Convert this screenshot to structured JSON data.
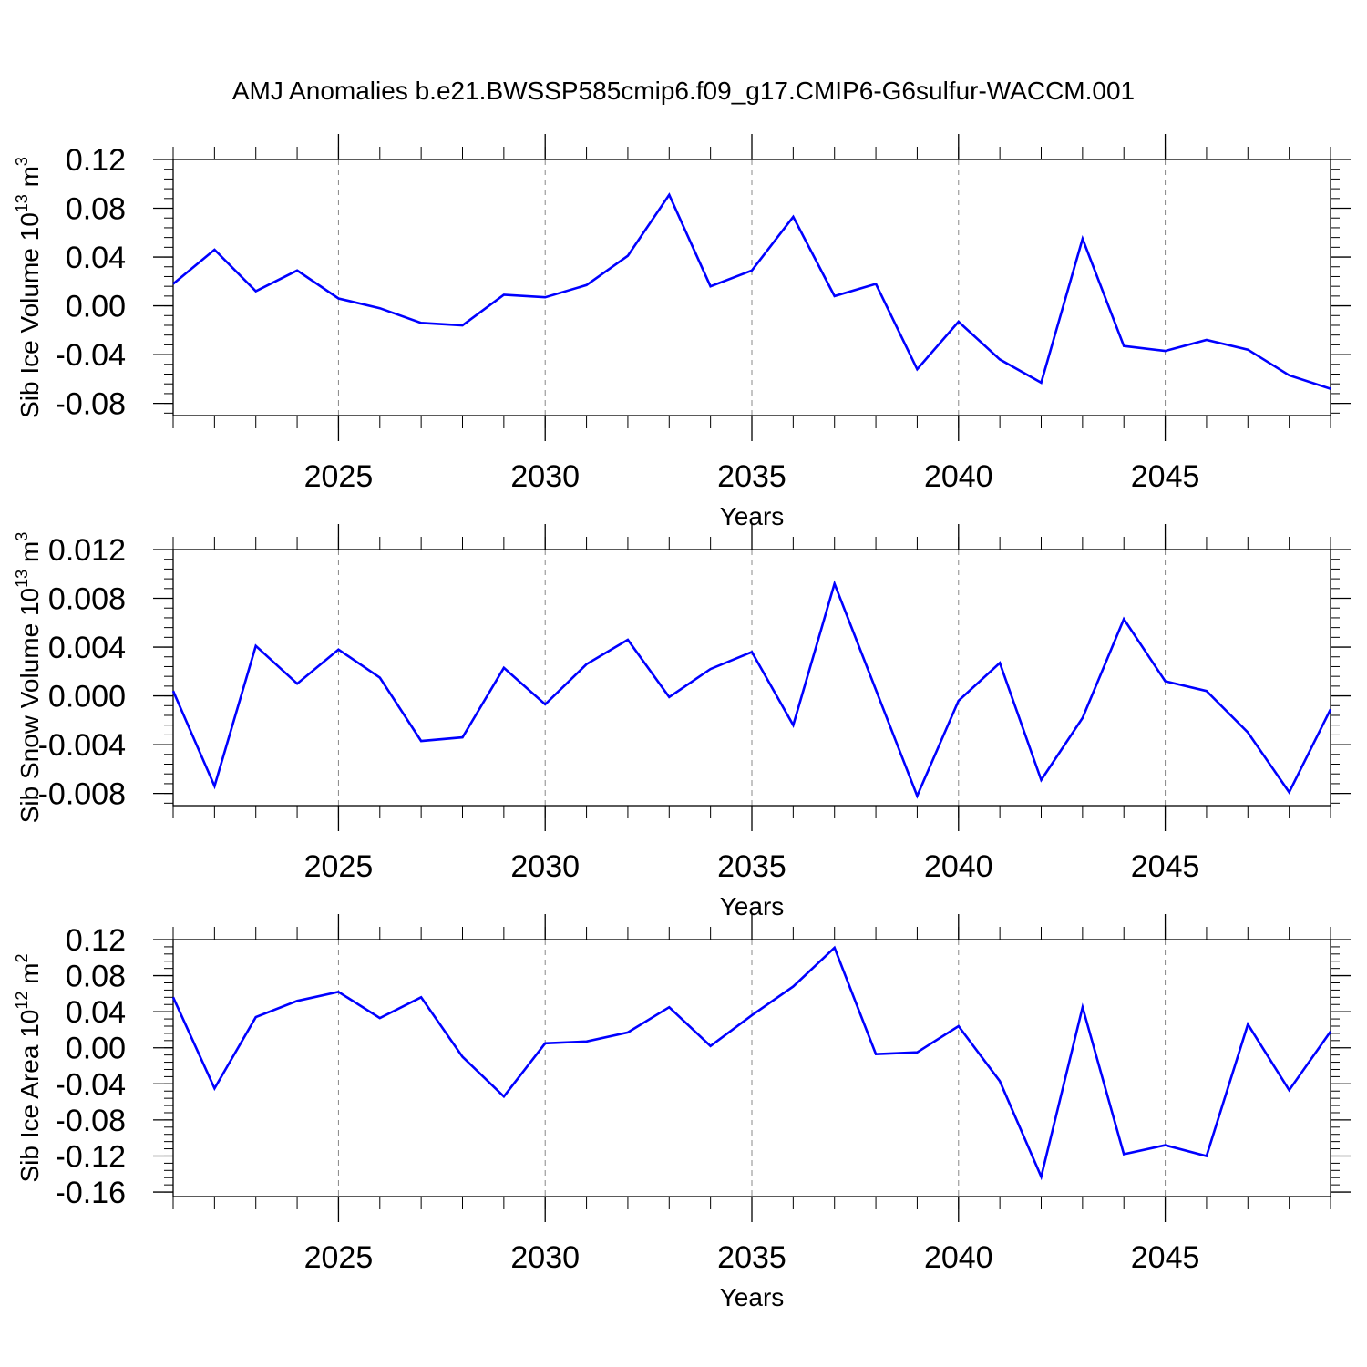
{
  "figure": {
    "title": "AMJ Anomalies b.e21.BWSSP585cmip6.f09_g17.CMIP6-G6sulfur-WACCM.001"
  },
  "style": {
    "line_color": "#0000ff",
    "grid_color": "#888888",
    "axis_color": "#000000"
  },
  "chart_data": [
    {
      "type": "line",
      "title": "",
      "xlabel": "Years",
      "ylabel": {
        "text": "Sib Ice Volume 10",
        "sup": "13",
        "unit": " m",
        "unit_sup": "3"
      },
      "xlim": [
        2021,
        2049
      ],
      "ylim": [
        -0.09,
        0.12
      ],
      "y_ticks": [
        -0.08,
        -0.04,
        0.0,
        0.04,
        0.08,
        0.12
      ],
      "y_tick_labels": [
        "-0.08",
        "-0.04",
        "0.00",
        "0.04",
        "0.08",
        "0.12"
      ],
      "x_ticks": [
        2025,
        2030,
        2035,
        2040,
        2045
      ],
      "x_tick_labels": [
        "2025",
        "2030",
        "2035",
        "2040",
        "2045"
      ],
      "grid": "vertical dashed at major x ticks",
      "series": [
        {
          "x": [
            2021,
            2022,
            2023,
            2024,
            2025,
            2026,
            2027,
            2028,
            2029,
            2030,
            2031,
            2032,
            2033,
            2034,
            2035,
            2036,
            2037,
            2038,
            2039,
            2040,
            2041,
            2042,
            2043,
            2044,
            2045,
            2046,
            2047,
            2048,
            2049
          ],
          "values": [
            0.018,
            0.046,
            0.012,
            0.029,
            0.006,
            -0.002,
            -0.014,
            -0.016,
            0.009,
            0.007,
            0.017,
            0.041,
            0.091,
            0.016,
            0.029,
            0.073,
            0.008,
            0.018,
            -0.052,
            -0.013,
            -0.044,
            -0.063,
            0.055,
            -0.033,
            -0.037,
            -0.028,
            -0.036,
            -0.057,
            -0.068
          ]
        }
      ]
    },
    {
      "type": "line",
      "title": "",
      "xlabel": "Years",
      "ylabel": {
        "text": "Sib Snow Volume 10",
        "sup": "13",
        "unit": " m",
        "unit_sup": "3"
      },
      "xlim": [
        2021,
        2049
      ],
      "ylim": [
        -0.009,
        0.012
      ],
      "y_ticks": [
        -0.008,
        -0.004,
        0.0,
        0.004,
        0.008,
        0.012
      ],
      "y_tick_labels": [
        "-0.008",
        "-0.004",
        "0.000",
        "0.004",
        "0.008",
        "0.012"
      ],
      "x_ticks": [
        2025,
        2030,
        2035,
        2040,
        2045
      ],
      "x_tick_labels": [
        "2025",
        "2030",
        "2035",
        "2040",
        "2045"
      ],
      "grid": "vertical dashed at major x ticks",
      "series": [
        {
          "x": [
            2021,
            2022,
            2023,
            2024,
            2025,
            2026,
            2027,
            2028,
            2029,
            2030,
            2031,
            2032,
            2033,
            2034,
            2035,
            2036,
            2037,
            2038,
            2039,
            2040,
            2041,
            2042,
            2043,
            2044,
            2045,
            2046,
            2047,
            2048,
            2049
          ],
          "values": [
            0.0004,
            -0.0074,
            0.0041,
            0.001,
            0.0038,
            0.0015,
            -0.0037,
            -0.0034,
            0.0023,
            -0.0007,
            0.0026,
            0.0046,
            -0.0001,
            0.0022,
            0.0036,
            -0.0024,
            0.0092,
            0.0005,
            -0.0082,
            -0.0004,
            0.0027,
            -0.0069,
            -0.0018,
            0.0063,
            0.0012,
            0.0004,
            -0.003,
            -0.0079,
            -0.0011
          ]
        }
      ]
    },
    {
      "type": "line",
      "title": "",
      "xlabel": "Years",
      "ylabel": {
        "text": "Sib Ice Area 10",
        "sup": "12",
        "unit": " m",
        "unit_sup": "2"
      },
      "xlim": [
        2021,
        2049
      ],
      "ylim": [
        -0.165,
        0.12
      ],
      "y_ticks": [
        -0.16,
        -0.12,
        -0.08,
        -0.04,
        0.0,
        0.04,
        0.08,
        0.12
      ],
      "y_tick_labels": [
        "-0.16",
        "-0.12",
        "-0.08",
        "-0.04",
        "0.00",
        "0.04",
        "0.08",
        "0.12"
      ],
      "x_ticks": [
        2025,
        2030,
        2035,
        2040,
        2045
      ],
      "x_tick_labels": [
        "2025",
        "2030",
        "2035",
        "2040",
        "2045"
      ],
      "grid": "vertical dashed at major x ticks",
      "series": [
        {
          "x": [
            2021,
            2022,
            2023,
            2024,
            2025,
            2026,
            2027,
            2028,
            2029,
            2030,
            2031,
            2032,
            2033,
            2034,
            2035,
            2036,
            2037,
            2038,
            2039,
            2040,
            2041,
            2042,
            2043,
            2044,
            2045,
            2046,
            2047,
            2048,
            2049
          ],
          "values": [
            0.056,
            -0.045,
            0.034,
            0.052,
            0.062,
            0.033,
            0.056,
            -0.01,
            -0.054,
            0.005,
            0.007,
            0.017,
            0.045,
            0.002,
            0.036,
            0.068,
            0.111,
            -0.007,
            -0.005,
            0.024,
            -0.037,
            -0.143,
            0.045,
            -0.118,
            -0.108,
            -0.12,
            0.026,
            -0.047,
            0.018
          ]
        }
      ]
    }
  ]
}
